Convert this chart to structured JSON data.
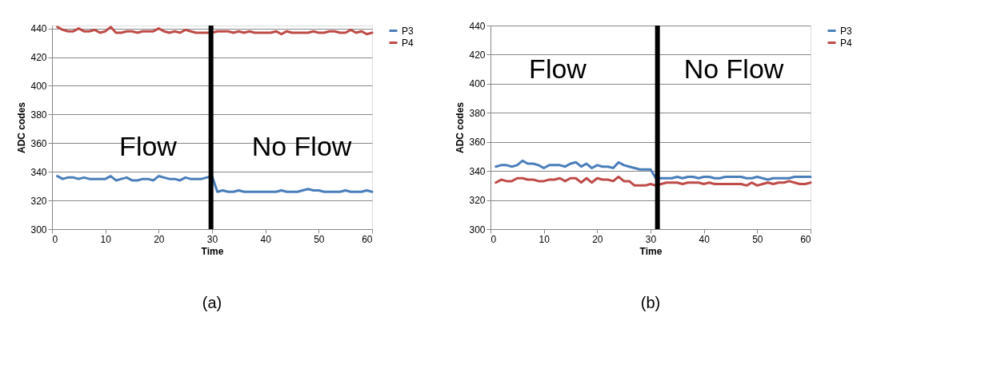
{
  "chart_data": [
    {
      "type": "line",
      "xlabel": "Time",
      "ylabel": "ADC codes",
      "xlim": [
        0,
        60
      ],
      "xticks": [
        0,
        10,
        20,
        30,
        40,
        50,
        60
      ],
      "ylim": [
        300,
        442
      ],
      "yticks": [
        300,
        320,
        340,
        360,
        380,
        400,
        420,
        440
      ],
      "grid": "y",
      "legend": "right",
      "marker": "none",
      "line_style": "solid",
      "x": [
        1,
        2,
        3,
        4,
        5,
        6,
        7,
        8,
        9,
        10,
        11,
        12,
        13,
        14,
        15,
        16,
        17,
        18,
        19,
        20,
        21,
        22,
        23,
        24,
        25,
        26,
        27,
        28,
        29,
        30,
        31,
        32,
        33,
        34,
        35,
        36,
        37,
        38,
        39,
        40,
        41,
        42,
        43,
        44,
        45,
        46,
        47,
        48,
        49,
        50,
        51,
        52,
        53,
        54,
        55,
        56,
        57,
        58,
        59,
        60
      ],
      "series": [
        {
          "name": "P3",
          "color": "#4a7ebb",
          "values": [
            337,
            335,
            336,
            336,
            335,
            336,
            335,
            335,
            335,
            335,
            337,
            334,
            335,
            336,
            334,
            334,
            335,
            335,
            334,
            337,
            336,
            335,
            335,
            334,
            336,
            335,
            335,
            335,
            336,
            337,
            326,
            327,
            326,
            326,
            327,
            326,
            326,
            326,
            326,
            326,
            326,
            326,
            327,
            326,
            326,
            326,
            327,
            328,
            327,
            327,
            326,
            326,
            326,
            326,
            327,
            326,
            326,
            326,
            327,
            326
          ]
        },
        {
          "name": "P4",
          "color": "#be4b48",
          "values": [
            441,
            439,
            438,
            438,
            440,
            438,
            438,
            439,
            437,
            438,
            441,
            437,
            437,
            438,
            438,
            437,
            438,
            438,
            438,
            440,
            438,
            437,
            438,
            437,
            439,
            438,
            437,
            437,
            437,
            437,
            438,
            438,
            438,
            437,
            438,
            437,
            438,
            437,
            437,
            437,
            437,
            438,
            436,
            438,
            437,
            437,
            437,
            437,
            438,
            437,
            437,
            438,
            438,
            437,
            437,
            439,
            437,
            438,
            436,
            437
          ]
        }
      ],
      "ref_lines": [
        {
          "axis": "x",
          "value": 29.8,
          "color": "#000000",
          "line_style": "solid"
        }
      ],
      "annotations": [
        "Flow",
        "No Flow",
        "(a)"
      ]
    },
    {
      "type": "line",
      "xlabel": "Time",
      "ylabel": "ADC codes",
      "xlim": [
        0,
        60
      ],
      "xticks": [
        0,
        10,
        20,
        30,
        40,
        50,
        60
      ],
      "ylim": [
        300,
        440
      ],
      "yticks": [
        300,
        320,
        340,
        360,
        380,
        400,
        420,
        440
      ],
      "grid": "y",
      "legend": "right",
      "marker": "none",
      "line_style": "solid",
      "x": [
        1,
        2,
        3,
        4,
        5,
        6,
        7,
        8,
        9,
        10,
        11,
        12,
        13,
        14,
        15,
        16,
        17,
        18,
        19,
        20,
        21,
        22,
        23,
        24,
        25,
        26,
        27,
        28,
        29,
        30,
        31,
        32,
        33,
        34,
        35,
        36,
        37,
        38,
        39,
        40,
        41,
        42,
        43,
        44,
        45,
        46,
        47,
        48,
        49,
        50,
        51,
        52,
        53,
        54,
        55,
        56,
        57,
        58,
        59,
        60
      ],
      "series": [
        {
          "name": "P3",
          "color": "#4a7ebb",
          "values": [
            343,
            344,
            344,
            343,
            344,
            347,
            345,
            345,
            344,
            342,
            344,
            344,
            344,
            343,
            345,
            346,
            343,
            345,
            342,
            344,
            343,
            343,
            342,
            346,
            344,
            343,
            342,
            341,
            341,
            341,
            335,
            335,
            335,
            335,
            336,
            335,
            336,
            336,
            335,
            336,
            336,
            335,
            335,
            336,
            336,
            336,
            336,
            335,
            335,
            336,
            335,
            334,
            335,
            335,
            335,
            335,
            336,
            336,
            336,
            336
          ]
        },
        {
          "name": "P4",
          "color": "#be4b48",
          "values": [
            332,
            334,
            333,
            333,
            335,
            335,
            334,
            334,
            333,
            333,
            334,
            334,
            335,
            333,
            335,
            335,
            332,
            335,
            332,
            335,
            334,
            334,
            333,
            336,
            333,
            333,
            330,
            330,
            330,
            331,
            330,
            331,
            332,
            332,
            332,
            331,
            332,
            332,
            332,
            331,
            332,
            331,
            331,
            331,
            331,
            331,
            331,
            330,
            332,
            330,
            331,
            332,
            331,
            332,
            332,
            333,
            332,
            331,
            331,
            332
          ]
        }
      ],
      "ref_lines": [
        {
          "axis": "x",
          "value": 31.3,
          "color": "#000000",
          "line_style": "solid"
        }
      ],
      "annotations": [
        "Flow",
        "No Flow",
        "(b)"
      ]
    }
  ]
}
